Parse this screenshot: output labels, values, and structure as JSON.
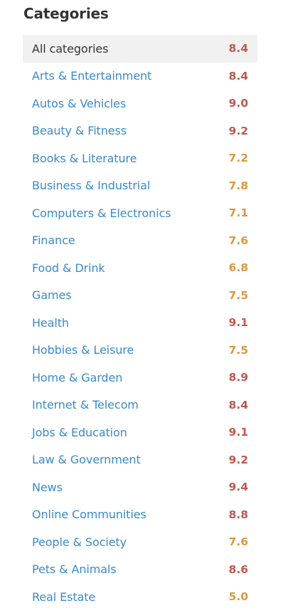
{
  "heading": "Categories",
  "colors": {
    "link": "#3a8ac9",
    "selected_bg": "#f1f1f1",
    "score_high": "#c2584f",
    "score_mid": "#d9993f"
  },
  "categories": [
    {
      "name": "All categories",
      "score": "8.4",
      "selected": true
    },
    {
      "name": "Arts & Entertainment",
      "score": "8.4"
    },
    {
      "name": "Autos & Vehicles",
      "score": "9.0"
    },
    {
      "name": "Beauty & Fitness",
      "score": "9.2"
    },
    {
      "name": "Books & Literature",
      "score": "7.2"
    },
    {
      "name": "Business & Industrial",
      "score": "7.8"
    },
    {
      "name": "Computers & Electronics",
      "score": "7.1"
    },
    {
      "name": "Finance",
      "score": "7.6"
    },
    {
      "name": "Food & Drink",
      "score": "6.8"
    },
    {
      "name": "Games",
      "score": "7.5"
    },
    {
      "name": "Health",
      "score": "9.1"
    },
    {
      "name": "Hobbies & Leisure",
      "score": "7.5"
    },
    {
      "name": "Home & Garden",
      "score": "8.9"
    },
    {
      "name": "Internet & Telecom",
      "score": "8.4"
    },
    {
      "name": "Jobs & Education",
      "score": "9.1"
    },
    {
      "name": "Law & Government",
      "score": "9.2"
    },
    {
      "name": "News",
      "score": "9.4"
    },
    {
      "name": "Online Communities",
      "score": "8.8"
    },
    {
      "name": "People & Society",
      "score": "7.6"
    },
    {
      "name": "Pets & Animals",
      "score": "8.6"
    },
    {
      "name": "Real Estate",
      "score": "5.0"
    }
  ]
}
